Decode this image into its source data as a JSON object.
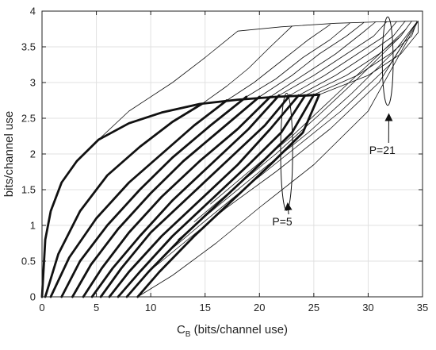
{
  "chart_data": {
    "type": "line",
    "title": "",
    "xlabel_main": "C",
    "xlabel_sub": "B",
    "xlabel_rest": " (bits/channel use)",
    "ylabel": "bits/channel use",
    "xlim": [
      0,
      35
    ],
    "ylim": [
      0,
      4
    ],
    "xticks": [
      "0",
      "5",
      "10",
      "15",
      "20",
      "25",
      "30",
      "35"
    ],
    "yticks": [
      "0",
      "0.5",
      "1",
      "1.5",
      "2",
      "2.5",
      "3",
      "3.5",
      "4"
    ],
    "grid": true,
    "series_groups": [
      {
        "annotation": "P=5",
        "style": "thick",
        "lines": [
          {
            "x": [
              0,
              0.3,
              0.8,
              1.8,
              3.2,
              5.2,
              8.0,
              11.0,
              14.5,
              18.0,
              21.5,
              24.5,
              25.5
            ],
            "y": [
              0,
              0.8,
              1.2,
              1.6,
              1.9,
              2.2,
              2.43,
              2.58,
              2.7,
              2.76,
              2.8,
              2.82,
              2.83
            ]
          },
          {
            "x": [
              0.3,
              1.5,
              3.5,
              6.0,
              9.0,
              12.0,
              14.7
            ],
            "y": [
              0,
              0.6,
              1.2,
              1.7,
              2.1,
              2.45,
              2.7
            ]
          },
          {
            "x": [
              0.8,
              2.5,
              5.0,
              8.0,
              11.0,
              14.0,
              17.0
            ],
            "y": [
              0,
              0.55,
              1.1,
              1.6,
              2.0,
              2.4,
              2.75
            ]
          },
          {
            "x": [
              1.8,
              3.5,
              6.0,
              9.0,
              12.0,
              15.5,
              18.8
            ],
            "y": [
              0,
              0.5,
              1.0,
              1.5,
              1.95,
              2.4,
              2.8
            ]
          },
          {
            "x": [
              2.8,
              4.5,
              7.0,
              10.0,
              13.0,
              16.5,
              20.0
            ],
            "y": [
              0,
              0.45,
              0.95,
              1.45,
              1.9,
              2.35,
              2.8
            ]
          },
          {
            "x": [
              3.8,
              5.5,
              8.0,
              11.0,
              14.5,
              18.0,
              21.0
            ],
            "y": [
              0,
              0.4,
              0.9,
              1.4,
              1.9,
              2.35,
              2.8
            ]
          },
          {
            "x": [
              4.6,
              6.5,
              9.0,
              12.0,
              15.5,
              19.0,
              21.8
            ],
            "y": [
              0,
              0.4,
              0.85,
              1.35,
              1.85,
              2.35,
              2.82
            ]
          },
          {
            "x": [
              5.4,
              7.3,
              10.0,
              13.5,
              17.0,
              20.5,
              22.8
            ],
            "y": [
              0,
              0.4,
              0.9,
              1.4,
              1.9,
              2.4,
              2.82
            ]
          },
          {
            "x": [
              6.2,
              8.0,
              11.0,
              14.5,
              18.0,
              21.0,
              23.6
            ],
            "y": [
              0,
              0.35,
              0.85,
              1.35,
              1.85,
              2.35,
              2.82
            ]
          },
          {
            "x": [
              7.0,
              9.0,
              12.0,
              15.5,
              19.0,
              22.0,
              24.2
            ],
            "y": [
              0,
              0.35,
              0.85,
              1.35,
              1.85,
              2.3,
              2.82
            ]
          },
          {
            "x": [
              7.8,
              9.8,
              13.0,
              16.5,
              20.0,
              23.0,
              25.0
            ],
            "y": [
              0,
              0.35,
              0.85,
              1.35,
              1.85,
              2.3,
              2.83
            ]
          },
          {
            "x": [
              8.8,
              10.8,
              14.0,
              17.5,
              21.0,
              24.0,
              25.5
            ],
            "y": [
              0,
              0.35,
              0.85,
              1.35,
              1.85,
              2.3,
              2.83
            ]
          }
        ]
      },
      {
        "annotation": "P=21",
        "style": "thin",
        "lines": [
          {
            "x": [
              5.2,
              8.0,
              12.0,
              15.0,
              18.0,
              22.0,
              27.0,
              31.0,
              34.5
            ],
            "y": [
              2.2,
              2.6,
              3.0,
              3.35,
              3.72,
              3.78,
              3.83,
              3.85,
              3.86
            ]
          },
          {
            "x": [
              14.7,
              17.0,
              19.0,
              21.0,
              23.0
            ],
            "y": [
              2.7,
              2.95,
              3.2,
              3.5,
              3.79
            ]
          },
          {
            "x": [
              17.0,
              19.5,
              22.0,
              24.5,
              26.5
            ],
            "y": [
              2.75,
              3.0,
              3.3,
              3.6,
              3.81
            ]
          },
          {
            "x": [
              18.8,
              21.5,
              24.0,
              26.5,
              28.3
            ],
            "y": [
              2.8,
              3.05,
              3.35,
              3.6,
              3.83
            ]
          },
          {
            "x": [
              20.0,
              23.0,
              25.5,
              28.0,
              29.6
            ],
            "y": [
              2.8,
              3.1,
              3.4,
              3.65,
              3.84
            ]
          },
          {
            "x": [
              21.0,
              24.0,
              27.0,
              29.5,
              30.7
            ],
            "y": [
              2.8,
              3.1,
              3.4,
              3.7,
              3.85
            ]
          },
          {
            "x": [
              21.8,
              25.0,
              28.0,
              30.5,
              31.7
            ],
            "y": [
              2.82,
              3.1,
              3.4,
              3.65,
              3.85
            ]
          },
          {
            "x": [
              22.8,
              26.0,
              29.0,
              31.5,
              32.6
            ],
            "y": [
              2.82,
              3.1,
              3.4,
              3.65,
              3.85
            ]
          },
          {
            "x": [
              23.6,
              27.0,
              30.0,
              32.3,
              33.4
            ],
            "y": [
              2.82,
              3.1,
              3.4,
              3.65,
              3.86
            ]
          },
          {
            "x": [
              24.2,
              28.0,
              31.0,
              33.0,
              34.0
            ],
            "y": [
              2.82,
              3.1,
              3.4,
              3.65,
              3.86
            ]
          },
          {
            "x": [
              25.0,
              29.0,
              32.0,
              34.0,
              34.5
            ],
            "y": [
              2.83,
              3.1,
              3.4,
              3.65,
              3.86
            ]
          },
          {
            "x": [
              25.5,
              30.0,
              33.0,
              34.6,
              34.6
            ],
            "y": [
              2.83,
              3.1,
              3.4,
              3.7,
              3.86
            ]
          },
          {
            "x": [
              8.8,
              12.0,
              16.0,
              20.0,
              25.0,
              30.0,
              34.6
            ],
            "y": [
              0.0,
              0.3,
              0.75,
              1.25,
              1.85,
              2.6,
              3.86
            ]
          },
          {
            "x": [
              9.8,
              13.0,
              17.0,
              21.5,
              26.5,
              31.0,
              34.5
            ],
            "y": [
              0.35,
              0.75,
              1.25,
              1.75,
              2.35,
              3.0,
              3.85
            ]
          },
          {
            "x": [
              11.0,
              14.5,
              18.5,
              23.0,
              27.5,
              32.0,
              34.5
            ],
            "y": [
              0.55,
              1.0,
              1.5,
              2.05,
              2.6,
              3.25,
              3.85
            ]
          },
          {
            "x": [
              12.5,
              16.0,
              20.0,
              24.5,
              28.5,
              32.5,
              34.5
            ],
            "y": [
              0.8,
              1.25,
              1.75,
              2.3,
              2.85,
              3.45,
              3.85
            ]
          },
          {
            "x": [
              14.0,
              17.5,
              21.5,
              25.5,
              29.0,
              33.0
            ],
            "y": [
              1.05,
              1.5,
              2.0,
              2.55,
              3.05,
              3.65
            ]
          },
          {
            "x": [
              15.5,
              19.0,
              23.0,
              26.5,
              30.0,
              33.5
            ],
            "y": [
              1.3,
              1.75,
              2.25,
              2.75,
              3.25,
              3.75
            ]
          }
        ]
      }
    ],
    "annotations": [
      {
        "label": "P=5",
        "ellipse_center": [
          22.5,
          2.03
        ],
        "ellipse_rx": 0.55,
        "ellipse_ry": 0.82,
        "arrow_to": [
          22.6,
          1.3
        ],
        "text_at": [
          22.1,
          1.0
        ]
      },
      {
        "label": "P=21",
        "ellipse_center": [
          31.8,
          3.3
        ],
        "ellipse_rx": 0.5,
        "ellipse_ry": 0.62,
        "arrow_to": [
          31.9,
          2.55
        ],
        "text_at": [
          31.3,
          2.0
        ]
      }
    ]
  }
}
